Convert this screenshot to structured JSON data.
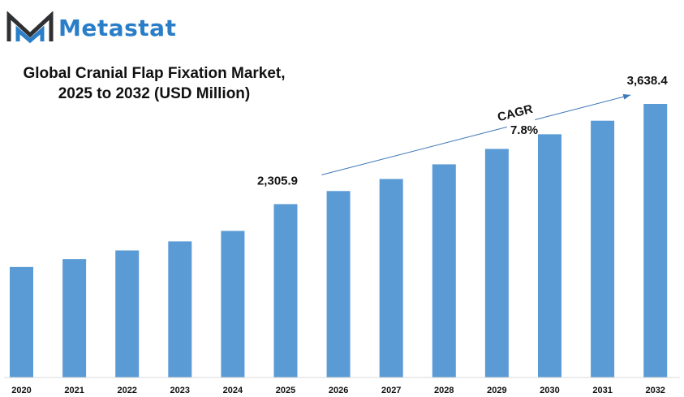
{
  "brand": {
    "name": "Metastat",
    "color": "#2a7ec8",
    "logo_icon": "metastat-m-logo"
  },
  "title": {
    "line1": "Global Cranial Flap Fixation Market,",
    "line2": "2025 to 2032 (USD Million)"
  },
  "chart_data": {
    "type": "bar",
    "categories": [
      "2020",
      "2021",
      "2022",
      "2023",
      "2024",
      "2025",
      "2026",
      "2027",
      "2028",
      "2029",
      "2030",
      "2031",
      "2032"
    ],
    "values": [
      1470,
      1575,
      1690,
      1810,
      1950,
      2305.9,
      2480,
      2640,
      2835,
      3040,
      3235,
      3415,
      3638.4
    ],
    "data_labels": [
      {
        "category": "2025",
        "text": "2,305.9"
      },
      {
        "category": "2032",
        "text": "3,638.4"
      }
    ],
    "annotation": {
      "label": "CAGR",
      "value": "7.8%"
    },
    "bar_color": "#5b9bd5",
    "arrow_color": "#3f78b8",
    "ylim": [
      0,
      3800
    ],
    "grid": false,
    "legend": "none"
  }
}
